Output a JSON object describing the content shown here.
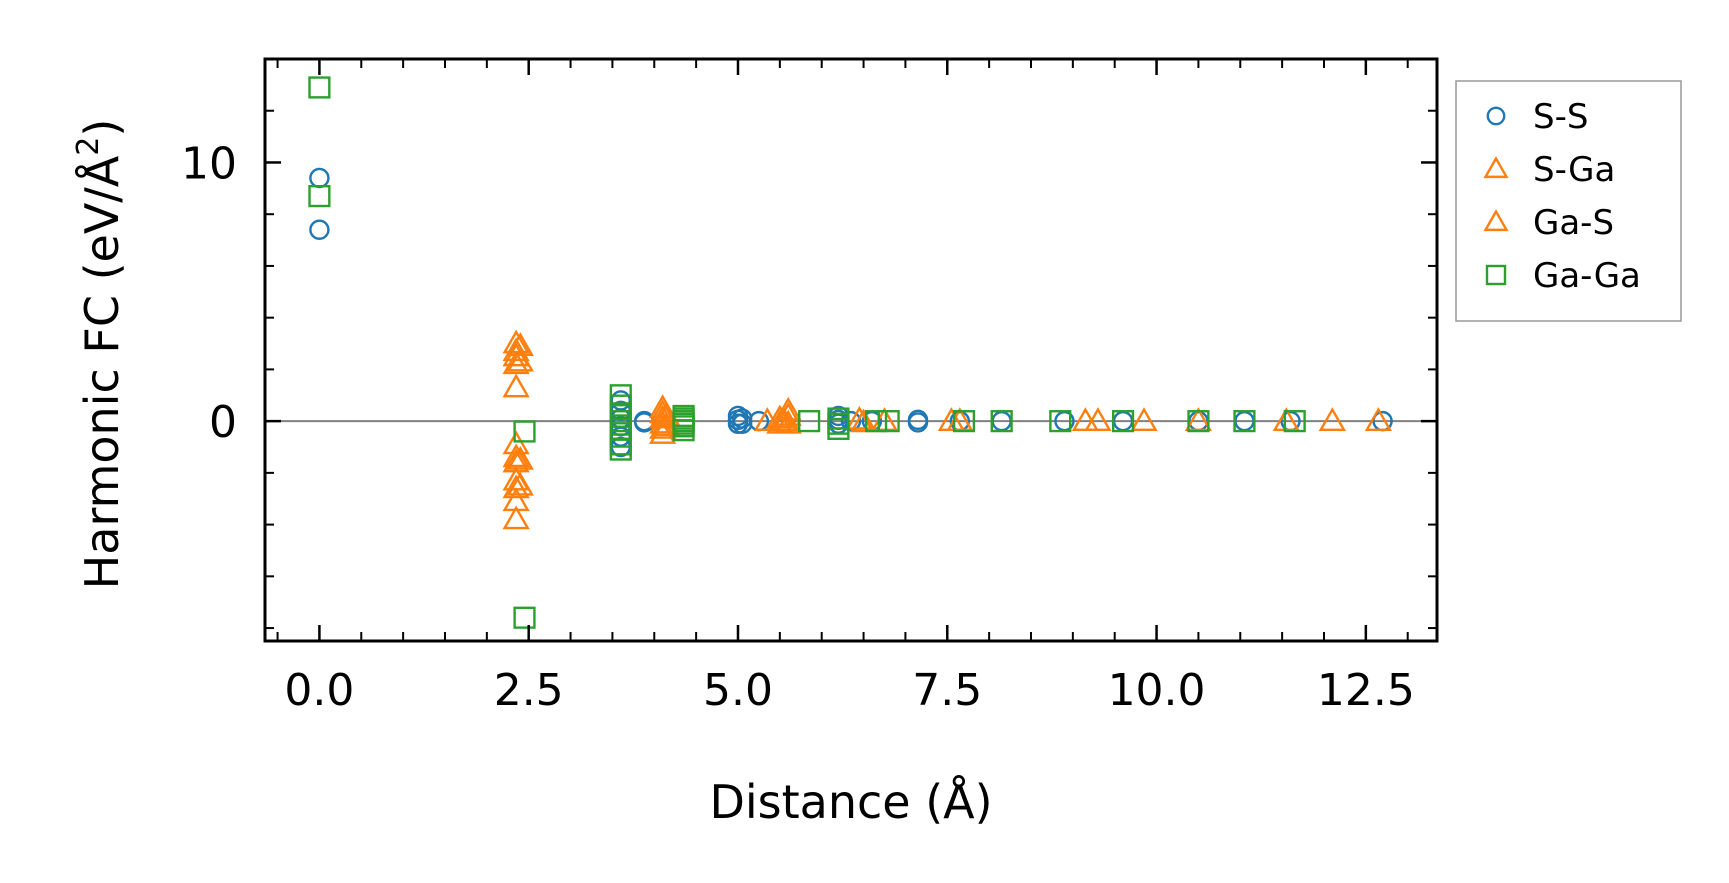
{
  "chart_data": {
    "type": "scatter",
    "title": "",
    "xlabel": "Distance (Å)",
    "ylabel": "Harmonic FC (eV/Å",
    "ylabel_sup": "2",
    "ylabel_close": ")",
    "xlim": [
      -0.65,
      13.35
    ],
    "ylim": [
      -8.5,
      14.0
    ],
    "xticks": [
      0.0,
      2.5,
      5.0,
      7.5,
      10.0,
      12.5
    ],
    "xtick_labels": [
      "0.0",
      "2.5",
      "5.0",
      "7.5",
      "10.0",
      "12.5"
    ],
    "yticks": [
      0,
      10
    ],
    "ytick_labels": [
      "0",
      "10"
    ],
    "zero_line": true,
    "legend_position": "outside-right-top",
    "series": [
      {
        "name": "S-S",
        "marker": "circle",
        "color": "#1f77b4",
        "points": [
          [
            0.0,
            9.4
          ],
          [
            0.0,
            7.4
          ],
          [
            3.6,
            0.8
          ],
          [
            3.6,
            0.4
          ],
          [
            3.6,
            0.1
          ],
          [
            3.6,
            -0.2
          ],
          [
            3.6,
            -0.6
          ],
          [
            3.6,
            -1.0
          ],
          [
            3.88,
            0.0
          ],
          [
            3.88,
            -0.05
          ],
          [
            5.0,
            0.2
          ],
          [
            5.0,
            0.05
          ],
          [
            5.0,
            -0.1
          ],
          [
            5.05,
            0.1
          ],
          [
            5.05,
            -0.1
          ],
          [
            5.25,
            0.0
          ],
          [
            6.2,
            0.2
          ],
          [
            6.2,
            0.05
          ],
          [
            6.2,
            -0.1
          ],
          [
            6.35,
            0.0
          ],
          [
            6.6,
            0.0
          ],
          [
            7.15,
            0.05
          ],
          [
            7.15,
            -0.05
          ],
          [
            7.65,
            0.0
          ],
          [
            8.15,
            0.0
          ],
          [
            8.9,
            0.0
          ],
          [
            9.6,
            0.0
          ],
          [
            10.5,
            0.0
          ],
          [
            11.05,
            0.0
          ],
          [
            11.6,
            0.0
          ],
          [
            12.7,
            0.0
          ]
        ]
      },
      {
        "name": "S-Ga",
        "marker": "triangle",
        "color": "#ff7f0e",
        "points": [
          [
            2.35,
            3.0
          ],
          [
            2.35,
            2.7
          ],
          [
            2.35,
            2.5
          ],
          [
            2.35,
            2.2
          ],
          [
            2.35,
            1.3
          ],
          [
            2.35,
            -0.9
          ],
          [
            2.35,
            -1.4
          ],
          [
            2.35,
            -1.6
          ],
          [
            2.35,
            -2.3
          ],
          [
            2.35,
            -2.6
          ],
          [
            2.35,
            -3.1
          ],
          [
            2.35,
            -3.8
          ],
          [
            4.1,
            0.5
          ],
          [
            4.1,
            0.3
          ],
          [
            4.1,
            0.1
          ],
          [
            4.1,
            -0.1
          ],
          [
            4.1,
            -0.3
          ],
          [
            4.1,
            -0.5
          ],
          [
            4.15,
            0.2
          ],
          [
            4.15,
            -0.2
          ],
          [
            5.5,
            0.1
          ],
          [
            5.5,
            -0.1
          ],
          [
            5.55,
            0.0
          ],
          [
            6.45,
            0.05
          ],
          [
            6.5,
            -0.05
          ],
          [
            7.65,
            0.0
          ],
          [
            9.3,
            0.0
          ],
          [
            10.5,
            0.0
          ],
          [
            12.1,
            0.0
          ]
        ]
      },
      {
        "name": "Ga-S",
        "marker": "triangle",
        "color": "#ff7f0e",
        "points": [
          [
            2.4,
            2.9
          ],
          [
            2.4,
            2.3
          ],
          [
            2.4,
            -1.5
          ],
          [
            2.4,
            -2.5
          ],
          [
            5.35,
            0.0
          ],
          [
            5.6,
            0.4
          ],
          [
            5.6,
            0.2
          ],
          [
            5.6,
            -0.1
          ],
          [
            6.75,
            0.0
          ],
          [
            7.55,
            0.0
          ],
          [
            9.15,
            0.0
          ],
          [
            9.85,
            0.0
          ],
          [
            11.55,
            0.0
          ],
          [
            12.65,
            0.0
          ]
        ]
      },
      {
        "name": "Ga-Ga",
        "marker": "square",
        "color": "#2ca02c",
        "points": [
          [
            0.0,
            12.9
          ],
          [
            0.0,
            8.7
          ],
          [
            2.45,
            -0.4
          ],
          [
            2.45,
            -7.6
          ],
          [
            3.6,
            1.0
          ],
          [
            3.6,
            0.6
          ],
          [
            3.6,
            0.3
          ],
          [
            3.6,
            0.0
          ],
          [
            3.6,
            -0.3
          ],
          [
            3.6,
            -0.6
          ],
          [
            3.6,
            -0.9
          ],
          [
            3.6,
            -1.1
          ],
          [
            4.35,
            0.2
          ],
          [
            4.35,
            0.1
          ],
          [
            4.35,
            0.0
          ],
          [
            4.35,
            -0.1
          ],
          [
            4.35,
            -0.2
          ],
          [
            4.35,
            -0.35
          ],
          [
            5.85,
            0.0
          ],
          [
            6.2,
            0.1
          ],
          [
            6.2,
            -0.1
          ],
          [
            6.2,
            -0.3
          ],
          [
            6.65,
            0.0
          ],
          [
            6.8,
            0.0
          ],
          [
            7.7,
            0.0
          ],
          [
            8.15,
            0.0
          ],
          [
            8.85,
            0.0
          ],
          [
            9.6,
            0.0
          ],
          [
            10.5,
            0.0
          ],
          [
            11.05,
            0.0
          ],
          [
            11.65,
            0.0
          ]
        ]
      }
    ]
  }
}
